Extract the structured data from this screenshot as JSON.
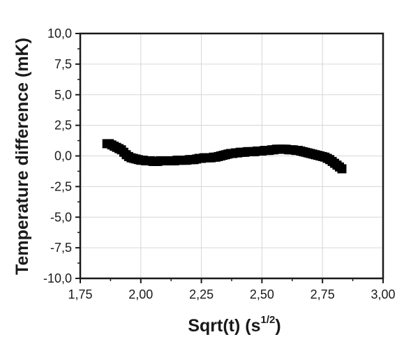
{
  "chart_data": {
    "type": "scatter",
    "xlabel": "Sqrt(t) (s",
    "xlabel_sup": "1/2",
    "xlabel_end": ")",
    "ylabel": "Temperature difference (mK)",
    "xlim": [
      1.75,
      3.0
    ],
    "ylim": [
      -10.0,
      10.0
    ],
    "x_ticks": [
      1.75,
      2.0,
      2.25,
      2.5,
      2.75,
      3.0
    ],
    "x_tick_labels": [
      "1,75",
      "2,00",
      "2,25",
      "2,50",
      "2,75",
      "3,00"
    ],
    "y_ticks": [
      10.0,
      7.5,
      5.0,
      2.5,
      0.0,
      -2.5,
      -5.0,
      -7.5,
      -10.0
    ],
    "y_tick_labels": [
      "10,0",
      "7,5",
      "5,0",
      "2,5",
      "0,0",
      "-2,5",
      "-5,0",
      "-7,5",
      "-10,0"
    ],
    "grid": true,
    "marker_color": "#000000",
    "marker": "square",
    "series": [
      {
        "x": [
          1.86,
          1.87,
          1.88,
          1.89,
          1.9,
          1.91,
          1.92,
          1.93,
          1.94,
          1.95,
          1.96,
          1.97,
          1.98,
          1.99,
          2.0,
          2.01,
          2.02,
          2.03,
          2.04,
          2.05,
          2.06,
          2.07,
          2.08,
          2.09,
          2.1,
          2.11,
          2.12,
          2.13,
          2.14,
          2.15,
          2.16,
          2.17,
          2.18,
          2.19,
          2.2,
          2.21,
          2.22,
          2.23,
          2.24,
          2.25,
          2.26,
          2.27,
          2.28,
          2.29,
          2.3,
          2.31,
          2.32,
          2.33,
          2.34,
          2.35,
          2.36,
          2.37,
          2.38,
          2.39,
          2.4,
          2.41,
          2.42,
          2.43,
          2.44,
          2.45,
          2.46,
          2.47,
          2.48,
          2.49,
          2.5,
          2.51,
          2.52,
          2.53,
          2.54,
          2.55,
          2.56,
          2.57,
          2.58,
          2.59,
          2.6,
          2.61,
          2.62,
          2.63,
          2.64,
          2.65,
          2.66,
          2.67,
          2.68,
          2.69,
          2.7,
          2.71,
          2.72,
          2.73,
          2.74,
          2.75,
          2.76,
          2.77,
          2.78,
          2.79,
          2.8,
          2.81,
          2.82,
          2.83
        ],
        "y": [
          1.0,
          1.0,
          0.9,
          0.8,
          0.7,
          0.6,
          0.5,
          0.3,
          0.1,
          -0.05,
          -0.15,
          -0.2,
          -0.25,
          -0.3,
          -0.35,
          -0.35,
          -0.4,
          -0.4,
          -0.4,
          -0.45,
          -0.45,
          -0.45,
          -0.4,
          -0.4,
          -0.4,
          -0.4,
          -0.4,
          -0.4,
          -0.4,
          -0.35,
          -0.35,
          -0.35,
          -0.35,
          -0.35,
          -0.3,
          -0.3,
          -0.3,
          -0.25,
          -0.2,
          -0.2,
          -0.15,
          -0.15,
          -0.15,
          -0.15,
          -0.1,
          -0.1,
          -0.05,
          0.0,
          0.05,
          0.1,
          0.15,
          0.2,
          0.2,
          0.25,
          0.25,
          0.3,
          0.3,
          0.3,
          0.35,
          0.35,
          0.35,
          0.35,
          0.4,
          0.4,
          0.4,
          0.45,
          0.45,
          0.45,
          0.5,
          0.5,
          0.55,
          0.55,
          0.55,
          0.55,
          0.55,
          0.5,
          0.5,
          0.5,
          0.45,
          0.45,
          0.4,
          0.35,
          0.3,
          0.25,
          0.2,
          0.15,
          0.1,
          0.05,
          0.0,
          -0.05,
          -0.1,
          -0.2,
          -0.3,
          -0.45,
          -0.6,
          -0.75,
          -0.9,
          -1.05
        ]
      }
    ]
  }
}
